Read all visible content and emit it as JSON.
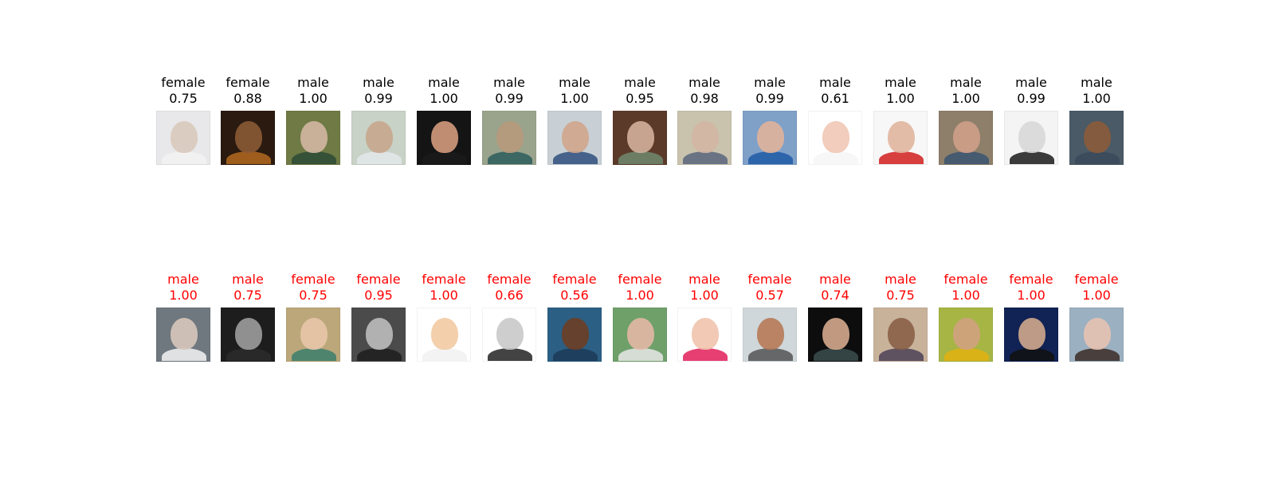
{
  "colors": {
    "correct": "#000000",
    "incorrect": "#ff0000"
  },
  "rows": [
    {
      "status": "correct",
      "items": [
        {
          "label": "female",
          "score": "0.75",
          "bg": "#e8e8ea",
          "face": "#d9c9bd",
          "body": "#f2f2f2"
        },
        {
          "label": "female",
          "score": "0.88",
          "bg": "#2a1a10",
          "face": "#8a5a35",
          "body": "#b36a1f"
        },
        {
          "label": "male",
          "score": "1.00",
          "bg": "#6f7a45",
          "face": "#d2b7a1",
          "body": "#2b4a35"
        },
        {
          "label": "male",
          "score": "0.99",
          "bg": "#c8d2c6",
          "face": "#c7a68d",
          "body": "#e3e7ea"
        },
        {
          "label": "male",
          "score": "1.00",
          "bg": "#141414",
          "face": "#d39a7c",
          "body": "#1a1a1a"
        },
        {
          "label": "male",
          "score": "0.99",
          "bg": "#9aa38c",
          "face": "#b79a7c",
          "body": "#2c5d5c"
        },
        {
          "label": "male",
          "score": "1.00",
          "bg": "#c8d0d5",
          "face": "#d0a58c",
          "body": "#2f4f7c"
        },
        {
          "label": "male",
          "score": "0.95",
          "bg": "#5c3a2a",
          "face": "#d1b09b",
          "body": "#6f8a6e"
        },
        {
          "label": "male",
          "score": "0.98",
          "bg": "#c9c2ad",
          "face": "#d3b7a3",
          "body": "#58657c"
        },
        {
          "label": "male",
          "score": "0.99",
          "bg": "#7fa0c7",
          "face": "#e1b29a",
          "body": "#1e5aa6"
        },
        {
          "label": "male",
          "score": "0.61",
          "bg": "#ffffff",
          "face": "#f1c7b5",
          "body": "#f6f6f6"
        },
        {
          "label": "male",
          "score": "1.00",
          "bg": "#f7f7f7",
          "face": "#e0b59f",
          "body": "#d11f1f"
        },
        {
          "label": "male",
          "score": "1.00",
          "bg": "#8d7f6a",
          "face": "#cfa08a",
          "body": "#3a5471"
        },
        {
          "label": "male",
          "score": "0.99",
          "bg": "#f4f4f4",
          "face": "#d8d8d8",
          "body": "#1a1a1a"
        },
        {
          "label": "male",
          "score": "1.00",
          "bg": "#4a5a66",
          "face": "#8b5b3a",
          "body": "#3b4a5a"
        }
      ]
    },
    {
      "status": "incorrect",
      "items": [
        {
          "label": "male",
          "score": "1.00",
          "bg": "#6f777f",
          "face": "#d7c6bb",
          "body": "#f3f3f3"
        },
        {
          "label": "male",
          "score": "0.75",
          "bg": "#1d1d1d",
          "face": "#9d9d9d",
          "body": "#2b2b2b"
        },
        {
          "label": "female",
          "score": "0.75",
          "bg": "#bca77a",
          "face": "#e7c6a8",
          "body": "#3b7e6b"
        },
        {
          "label": "female",
          "score": "0.95",
          "bg": "#4b4b4b",
          "face": "#bdbdbd",
          "body": "#1d1d1d"
        },
        {
          "label": "female",
          "score": "1.00",
          "bg": "#ffffff",
          "face": "#f2caa2",
          "body": "#f1f1f1"
        },
        {
          "label": "female",
          "score": "0.66",
          "bg": "#ffffff",
          "face": "#c9c9c9",
          "body": "#222222"
        },
        {
          "label": "female",
          "score": "0.56",
          "bg": "#2c5f84",
          "face": "#6d3e24",
          "body": "#1c3a57"
        },
        {
          "label": "female",
          "score": "1.00",
          "bg": "#6fa06a",
          "face": "#e2b7a4",
          "body": "#e7e7e7"
        },
        {
          "label": "male",
          "score": "1.00",
          "bg": "#ffffff",
          "face": "#f0c3ad",
          "body": "#e21f5a"
        },
        {
          "label": "female",
          "score": "0.57",
          "bg": "#cfd7da",
          "face": "#b67a57",
          "body": "#545454"
        },
        {
          "label": "male",
          "score": "0.74",
          "bg": "#0d0d0d",
          "face": "#d4a98d",
          "body": "#3c4d4f"
        },
        {
          "label": "male",
          "score": "0.75",
          "bg": "#c8b29a",
          "face": "#8a5f47",
          "body": "#4b3f56"
        },
        {
          "label": "female",
          "score": "1.00",
          "bg": "#a6b544",
          "face": "#d1a17f",
          "body": "#e2b20f"
        },
        {
          "label": "female",
          "score": "1.00",
          "bg": "#112255",
          "face": "#d0a98c",
          "body": "#111111"
        },
        {
          "label": "female",
          "score": "1.00",
          "bg": "#9bb0c0",
          "face": "#e7c3b2",
          "body": "#3b2b26"
        }
      ]
    }
  ]
}
